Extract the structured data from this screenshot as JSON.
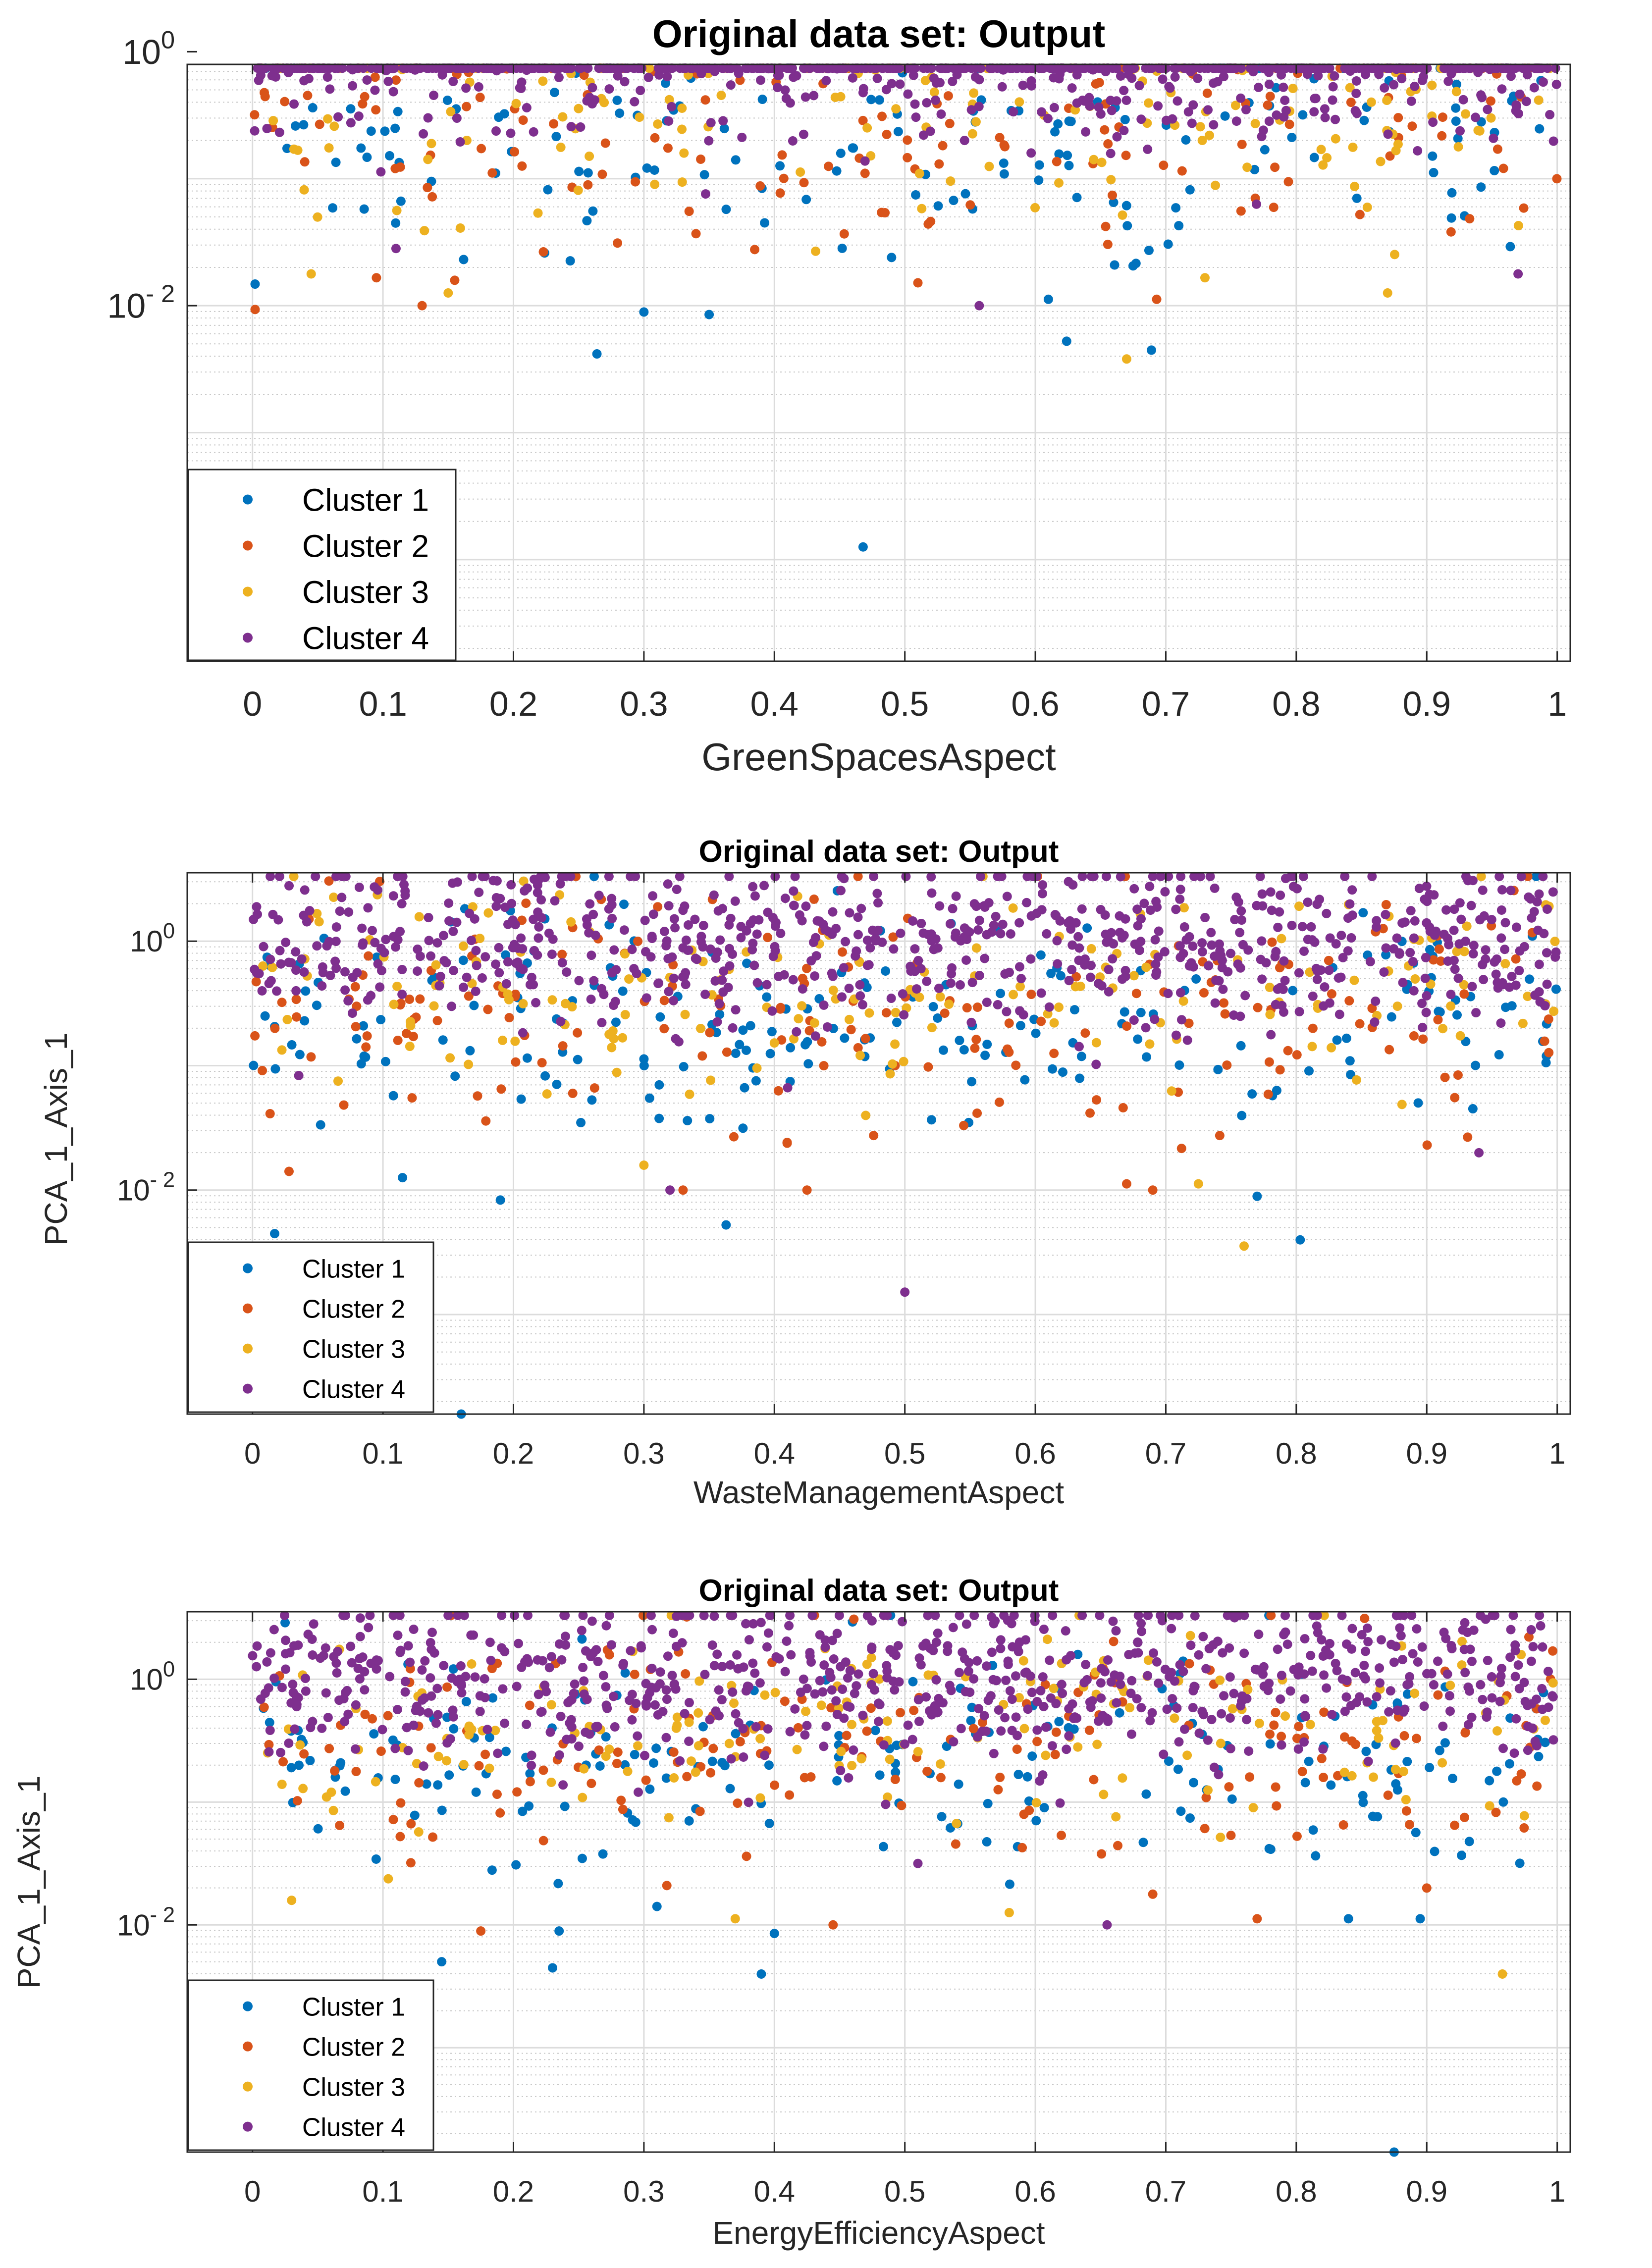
{
  "figure": {
    "background": "#ffffff"
  },
  "cluster_colors": {
    "Cluster 1": "#0072BD",
    "Cluster 2": "#D95319",
    "Cluster 3": "#EDB120",
    "Cluster 4": "#7E2F8E"
  },
  "chart_data": [
    {
      "type": "scatter",
      "title": "Original data set: Output",
      "xlabel": "GreenSpacesAspect",
      "ylabel": "",
      "xlim": [
        -0.05,
        1.01
      ],
      "ylim_log10": [
        -4.8,
        -0.1
      ],
      "yscale": "log",
      "xticks": [
        "0",
        "0.1",
        "0.2",
        "0.3",
        "0.4",
        "0.5",
        "0.6",
        "0.7",
        "0.8",
        "0.9",
        "1"
      ],
      "yticks": [
        {
          "base": "10",
          "exp": "0",
          "value": 0
        },
        {
          "base": "10",
          "exp": "- 2",
          "value": -2
        }
      ],
      "grid": true,
      "legend_position": "bottom-left",
      "seed": 17,
      "series": [
        {
          "name": "Cluster 1",
          "color": "#0072BD",
          "count": 160,
          "center_log10": -0.75,
          "spread": 0.55,
          "outliers": [
            [
              0.002,
              -1.83
            ],
            [
              0.3,
              -2.05
            ],
            [
              0.35,
              -2.07
            ],
            [
              0.264,
              -2.38
            ],
            [
              0.468,
              -3.9
            ],
            [
              0.624,
              -2.28
            ],
            [
              0.689,
              -2.35
            ],
            [
              0.61,
              -1.95
            ]
          ]
        },
        {
          "name": "Cluster 2",
          "color": "#D95319",
          "count": 170,
          "center_log10": -0.55,
          "spread": 0.5,
          "outliers": [
            [
              0.002,
              -2.03
            ],
            [
              0.13,
              -2.0
            ],
            [
              0.095,
              -1.78
            ],
            [
              0.51,
              -1.82
            ],
            [
              0.693,
              -1.95
            ],
            [
              0.155,
              -1.8
            ]
          ]
        },
        {
          "name": "Cluster 3",
          "color": "#EDB120",
          "count": 170,
          "center_log10": -0.4,
          "spread": 0.45,
          "outliers": [
            [
              0.67,
              -2.42
            ],
            [
              0.73,
              -1.78
            ],
            [
              0.15,
              -1.9
            ],
            [
              0.87,
              -1.9
            ],
            [
              0.045,
              -1.75
            ]
          ]
        },
        {
          "name": "Cluster 4",
          "color": "#7E2F8E",
          "count": 760,
          "center_log10": 0.0,
          "spread": 0.35,
          "outliers": [
            [
              0.557,
              -2.0
            ],
            [
              0.11,
              -1.55
            ],
            [
              0.97,
              -1.75
            ]
          ]
        }
      ]
    },
    {
      "type": "scatter",
      "title": "Original data set: Output",
      "xlabel": "WasteManagementAspect",
      "ylabel": "PCA_1_Axis_1",
      "xlim": [
        -0.05,
        1.01
      ],
      "ylim_log10": [
        -3.8,
        0.55
      ],
      "yscale": "log",
      "xticks": [
        "0",
        "0.1",
        "0.2",
        "0.3",
        "0.4",
        "0.5",
        "0.6",
        "0.7",
        "0.8",
        "0.9",
        "1"
      ],
      "yticks": [
        {
          "base": "10",
          "exp": "0",
          "value": 0
        },
        {
          "base": "10",
          "exp": "- 2",
          "value": -2
        }
      ],
      "grid": true,
      "legend_position": "bottom-left",
      "seed": 29,
      "series": [
        {
          "name": "Cluster 1",
          "color": "#0072BD",
          "count": 200,
          "center_log10": -0.6,
          "spread": 0.45,
          "outliers": [
            [
              0.017,
              -2.35
            ],
            [
              0.19,
              -2.08
            ],
            [
              0.363,
              -2.28
            ],
            [
              0.115,
              -1.9
            ],
            [
              0.16,
              -3.8
            ],
            [
              0.803,
              -2.4
            ],
            [
              0.77,
              -2.05
            ]
          ]
        },
        {
          "name": "Cluster 2",
          "color": "#D95319",
          "count": 190,
          "center_log10": -0.5,
          "spread": 0.5,
          "outliers": [
            [
              0.33,
              -2.0
            ],
            [
              0.425,
              -2.0
            ],
            [
              0.67,
              -1.95
            ],
            [
              0.69,
              -2.0
            ],
            [
              0.028,
              -1.85
            ]
          ]
        },
        {
          "name": "Cluster 3",
          "color": "#EDB120",
          "count": 170,
          "center_log10": -0.35,
          "spread": 0.45,
          "outliers": [
            [
              0.76,
              -2.45
            ],
            [
              0.725,
              -1.95
            ],
            [
              0.3,
              -1.8
            ],
            [
              0.47,
              -1.4
            ]
          ]
        },
        {
          "name": "Cluster 4",
          "color": "#7E2F8E",
          "count": 760,
          "center_log10": 0.0,
          "spread": 0.35,
          "outliers": [
            [
              0.5,
              -2.82
            ],
            [
              0.94,
              -1.7
            ],
            [
              0.32,
              -2.0
            ]
          ]
        }
      ]
    },
    {
      "type": "scatter",
      "title": "Original data set: Output",
      "xlabel": "EnergyEfficiencyAspect",
      "ylabel": "PCA_1_Axis_1",
      "xlim": [
        -0.05,
        1.01
      ],
      "ylim_log10": [
        -3.85,
        0.55
      ],
      "yscale": "log",
      "xticks": [
        "0",
        "0.1",
        "0.2",
        "0.3",
        "0.4",
        "0.5",
        "0.6",
        "0.7",
        "0.8",
        "0.9",
        "1"
      ],
      "yticks": [
        {
          "base": "10",
          "exp": "0",
          "value": 0
        },
        {
          "base": "10",
          "exp": "- 2",
          "value": -2
        }
      ],
      "grid": true,
      "legend_position": "bottom-left",
      "seed": 41,
      "series": [
        {
          "name": "Cluster 1",
          "color": "#0072BD",
          "count": 200,
          "center_log10": -0.6,
          "spread": 0.45,
          "outliers": [
            [
              0.145,
              -2.3
            ],
            [
              0.23,
              -2.35
            ],
            [
              0.235,
              -2.05
            ],
            [
              0.39,
              -2.4
            ],
            [
              0.4,
              -2.07
            ],
            [
              0.875,
              -3.85
            ],
            [
              0.84,
              -1.95
            ],
            [
              0.895,
              -1.95
            ],
            [
              0.31,
              -1.85
            ]
          ]
        },
        {
          "name": "Cluster 2",
          "color": "#D95319",
          "count": 190,
          "center_log10": -0.5,
          "spread": 0.5,
          "outliers": [
            [
              0.175,
              -2.05
            ],
            [
              0.445,
              -2.0
            ],
            [
              0.77,
              -1.95
            ],
            [
              0.69,
              -1.75
            ],
            [
              0.9,
              -1.7
            ]
          ]
        },
        {
          "name": "Cluster 3",
          "color": "#EDB120",
          "count": 170,
          "center_log10": -0.35,
          "spread": 0.45,
          "outliers": [
            [
              0.03,
              -1.8
            ],
            [
              0.58,
              -1.9
            ],
            [
              0.958,
              -2.4
            ],
            [
              0.37,
              -1.95
            ]
          ]
        },
        {
          "name": "Cluster 4",
          "color": "#7E2F8E",
          "count": 760,
          "center_log10": 0.0,
          "spread": 0.35,
          "outliers": [
            [
              0.655,
              -2.0
            ],
            [
              0.51,
              -1.5
            ]
          ]
        }
      ]
    }
  ]
}
